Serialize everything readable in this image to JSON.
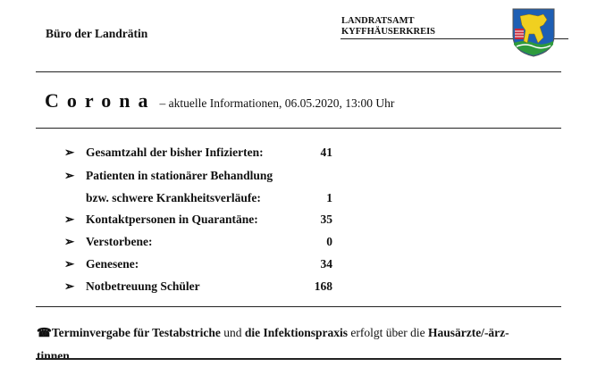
{
  "header": {
    "office": "Büro der Landrätin",
    "authority_line1": "LANDRATSAMT",
    "authority_line2": "KYFFHÄUSERKREIS",
    "logo": "coat-of-arms Kyffhäuserkreis"
  },
  "title": {
    "main": "Corona",
    "subtitle": "– aktuelle Informationen,  06.05.2020, 13:00 Uhr"
  },
  "stats": [
    {
      "label": "Gesamtzahl der bisher Infizierten:",
      "value": "41"
    },
    {
      "label": "Patienten in stationärer Behandlung",
      "value": ""
    },
    {
      "label": "bzw. schwere Krankheitsverläufe:",
      "value": "1"
    },
    {
      "label": "Kontaktpersonen in Quarantäne:",
      "value": "35"
    },
    {
      "label": "Verstorbene:",
      "value": "0"
    },
    {
      "label": "Genesene:",
      "value": "34"
    },
    {
      "label": "Notbetreuung Schüler",
      "value": "168"
    }
  ],
  "bullet": "➢",
  "note": {
    "icon": "☎",
    "p1": "Terminvergabe für Testabstriche",
    "p2": " und ",
    "p3": "die Infektionspraxis",
    "p4": " erfolgt über die ",
    "p5": "Hausärzte/-ärz-",
    "p6": "tinnen"
  }
}
